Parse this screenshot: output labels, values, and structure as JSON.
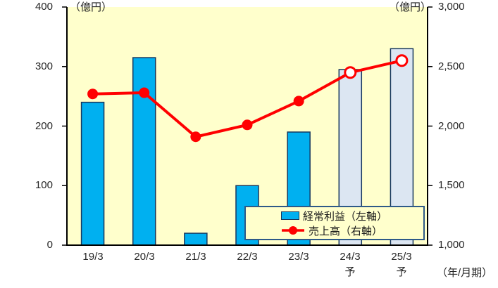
{
  "chart_data": {
    "type": "combo-bar-line",
    "categories": [
      "19/3",
      "20/3",
      "21/3",
      "22/3",
      "23/3",
      "24/3",
      "25/3"
    ],
    "category_suffixes": [
      "",
      "",
      "",
      "",
      "",
      "予",
      "予"
    ],
    "series": [
      {
        "name": "経常利益（左軸）",
        "type": "bar",
        "axis": "left",
        "values": [
          240,
          315,
          20,
          100,
          190,
          295,
          330
        ],
        "forecast": [
          false,
          false,
          false,
          false,
          false,
          true,
          true
        ]
      },
      {
        "name": "売上高（右軸）",
        "type": "line",
        "axis": "right",
        "values": [
          2270,
          2280,
          1910,
          2010,
          2210,
          2450,
          2550
        ],
        "forecast": [
          false,
          false,
          false,
          false,
          false,
          true,
          true
        ]
      }
    ],
    "left_axis": {
      "unit": "（億円）",
      "min": 0,
      "max": 400,
      "tick_labels_top_to_bottom": [
        "400",
        "300",
        "200",
        "100",
        "0"
      ]
    },
    "right_axis": {
      "unit": "（億円）",
      "min": 1000,
      "max": 3000,
      "tick_labels_top_to_bottom": [
        "3,000",
        "2,500",
        "2,000",
        "1,500",
        "1,000"
      ]
    },
    "x_axis_note": "（年/月期）",
    "legend": {
      "items": [
        {
          "label": "経常利益（左軸）",
          "marker": "bar-swatch"
        },
        {
          "label": "売上高（右軸）",
          "marker": "line-dot"
        }
      ],
      "position": "bottom-right-inside"
    },
    "layout_hints": {
      "grid": false,
      "plot_background": "#ffffcc"
    },
    "colors": {
      "bar_fill": "#00b0f0",
      "bar_forecast_fill": "#dce6f2",
      "bar_border": "#17375e",
      "line": "#ff0000",
      "plot_bg": "#ffffcc",
      "axis": "#000000",
      "legend_border": "#2e5a88"
    }
  }
}
